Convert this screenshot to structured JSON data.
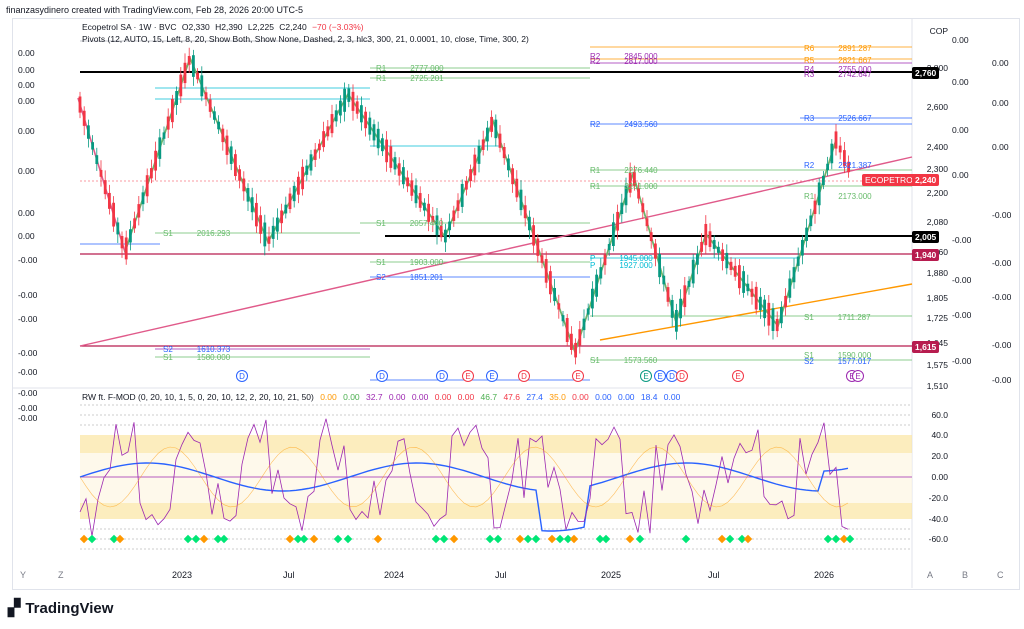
{
  "header": {
    "credit": "finanzasydinero created with TradingView.com, Feb 28, 2026 20:00 UTC-5"
  },
  "chart": {
    "symbol": "Ecopetrol SA · 1W · BVC",
    "ohlc": {
      "o": "O2,330",
      "h": "H2,390",
      "l": "L2,225",
      "c": "C2,240",
      "chg": "−70 (−3.03%)"
    },
    "pivots_legend": "Pivots (12, AUTO, 15, Left, 8, 20, Show Both, Show None, Dashed, 2, 3, hlc3, 300, 21, 0.0001, 10, close, Time, 300, 2)",
    "currency": "COP",
    "price_ticks": [
      "2,800",
      "2,600",
      "2,400",
      "2,300",
      "2,200",
      "2,080",
      "1,960",
      "1,880",
      "1,805",
      "1,725",
      "1,645",
      "1,575",
      "1,510"
    ],
    "tags": {
      "level_2760": "2,760",
      "last_label": "ECOPETROL",
      "last_price": "2,240",
      "level_2005": "2,005",
      "level_1940": "1,940",
      "level_1615": "1,615"
    },
    "left_values": [
      "0.00",
      "0.00",
      "0.00",
      "0.00",
      "0.00",
      "0.00",
      "0.00",
      "0.00",
      "-0.00",
      "-0.00",
      "-0.00",
      "-0.00",
      "-0.00",
      "-0.00",
      "-0.00",
      "-0.00"
    ],
    "right_values": [
      "0.00",
      "0.00",
      "0.00",
      "0.00",
      "0.00",
      "0.00",
      "0.00",
      "-0.00",
      "-0.00",
      "-0.00",
      "-0.00",
      "-0.00",
      "-0.00",
      "-0.00",
      "-0.00",
      "-0.00"
    ],
    "levels": [
      {
        "label": "R6",
        "value": "2891.287"
      },
      {
        "label": "R5",
        "value": "2821.667"
      },
      {
        "label": "R4",
        "value": "2755.000"
      },
      {
        "label": "R3",
        "value": "2742.647"
      },
      {
        "label": "R2",
        "value": "2845.000"
      },
      {
        "label": "R2",
        "value": "2817.000"
      },
      {
        "label": "R1",
        "value": "2777.000"
      },
      {
        "label": "R1",
        "value": "2725.201"
      },
      {
        "label": "R2",
        "value": "2493.560"
      },
      {
        "label": "R3",
        "value": "2526.667"
      },
      {
        "label": "R2",
        "value": "2321.387"
      },
      {
        "label": "R1",
        "value": "2276.440"
      },
      {
        "label": "R1",
        "value": "2231.000"
      },
      {
        "label": "R1",
        "value": "2173.000"
      },
      {
        "label": "S1",
        "value": "2057.440"
      },
      {
        "label": "S1",
        "value": "2016.293"
      },
      {
        "label": "P",
        "value": "1945.000"
      },
      {
        "label": "P",
        "value": "1927.000"
      },
      {
        "label": "S1",
        "value": "1903.000"
      },
      {
        "label": "S2",
        "value": "1851.201"
      },
      {
        "label": "S1",
        "value": "1711.287"
      },
      {
        "label": "S2",
        "value": "1610.373"
      },
      {
        "label": "S1",
        "value": "1580.000"
      },
      {
        "label": "S1",
        "value": "1573.560"
      },
      {
        "label": "S1",
        "value": "1590.000"
      },
      {
        "label": "S2",
        "value": "1577.017"
      }
    ],
    "event_markers": [
      "D",
      "D",
      "D",
      "E",
      "E",
      "D",
      "E",
      "E",
      "E",
      "D",
      "D",
      "E",
      "E",
      "E"
    ]
  },
  "oscillator": {
    "title": "RW ft. F-MOD (0, 20, 10, 1, 5, 0, 20, 10, 12, 2, 20, 10, 21, 50)",
    "values": [
      {
        "v": "0.00",
        "c": "#ff9800"
      },
      {
        "v": "0.00",
        "c": "#4caf50"
      },
      {
        "v": "32.7",
        "c": "#9c27b0"
      },
      {
        "v": "0.00",
        "c": "#9c27b0"
      },
      {
        "v": "0.00",
        "c": "#9c27b0"
      },
      {
        "v": "0.00",
        "c": "#f23645"
      },
      {
        "v": "0.00",
        "c": "#f23645"
      },
      {
        "v": "46.7",
        "c": "#4caf50"
      },
      {
        "v": "47.6",
        "c": "#f23645"
      },
      {
        "v": "27.4",
        "c": "#2962ff"
      },
      {
        "v": "35.0",
        "c": "#ff9800"
      },
      {
        "v": "0.00",
        "c": "#f23645"
      },
      {
        "v": "0.00",
        "c": "#2962ff"
      },
      {
        "v": "0.00",
        "c": "#2962ff"
      },
      {
        "v": "18.4",
        "c": "#2962ff"
      },
      {
        "v": "0.00",
        "c": "#2962ff"
      }
    ],
    "ticks": [
      "60.0",
      "40.0",
      "20.0",
      "0.00",
      "-20.0",
      "-40.0",
      "-60.0"
    ]
  },
  "time_axis": {
    "labels": [
      "2023",
      "Jul",
      "2024",
      "Jul",
      "2025",
      "Jul",
      "2026"
    ]
  },
  "axis_buttons": {
    "y": "Y",
    "z": "Z",
    "a": "A",
    "b": "B",
    "c": "C"
  },
  "footer": {
    "brand": "TradingView"
  }
}
